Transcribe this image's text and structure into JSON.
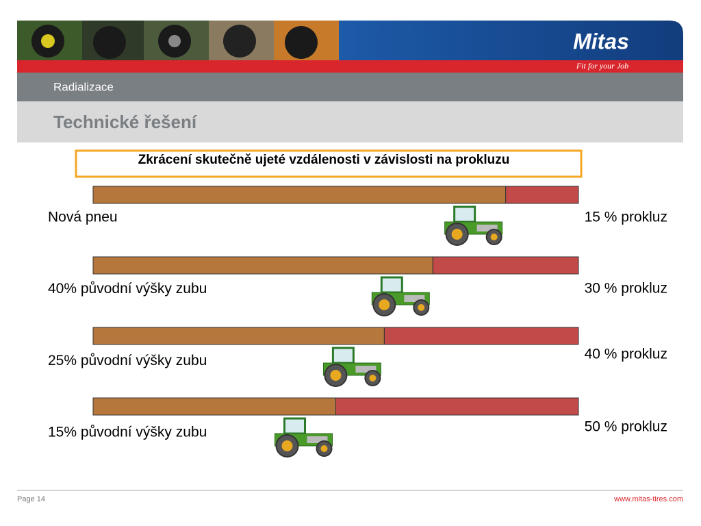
{
  "header": {
    "brand": "Mitas",
    "slogan": "Fit for your Job",
    "section": "Radializace",
    "title": "Technické řešení"
  },
  "subtitle": "Zkrácení skutečně ujeté vzdálenosti v závislosti na prokluzu",
  "rows": [
    {
      "label": "Nová pneu",
      "slip": 15,
      "slip_label": "15 % prokluz"
    },
    {
      "label": "40% původní výšky zubu",
      "slip": 30,
      "slip_label": "30 % prokluz"
    },
    {
      "label": "25% původní výšky zubu",
      "slip": 40,
      "slip_label": "40 % prokluz"
    },
    {
      "label": "15% původní výšky zubu",
      "slip": 50,
      "slip_label": "50 % prokluz"
    }
  ],
  "footer": {
    "page": "Page 14",
    "url": "www.mitas-tires.com"
  }
}
